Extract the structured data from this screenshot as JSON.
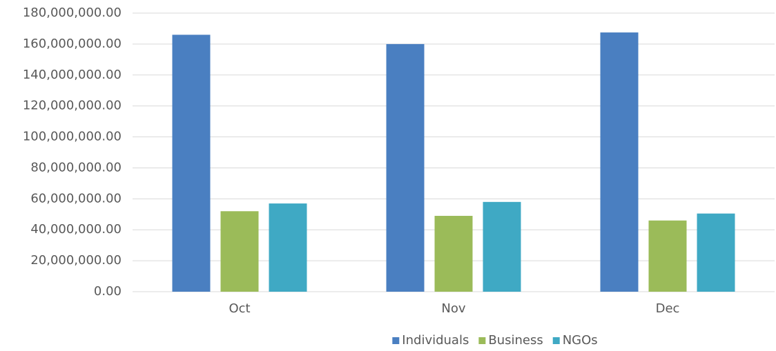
{
  "chart_data": {
    "type": "bar",
    "categories": [
      "Oct",
      "Nov",
      "Dec"
    ],
    "series": [
      {
        "name": "Individuals",
        "color": "#4a7fc1",
        "values": [
          166000000,
          160000000,
          167500000
        ]
      },
      {
        "name": "Business",
        "color": "#9bbb59",
        "values": [
          52000000,
          49000000,
          46000000
        ]
      },
      {
        "name": "NGOs",
        "color": "#3fa9c4",
        "values": [
          57000000,
          58000000,
          50500000
        ]
      }
    ],
    "ylim": [
      0,
      180000000
    ],
    "yticks": [
      {
        "value": 0,
        "label": "0.00"
      },
      {
        "value": 20000000,
        "label": "20,000,000.00"
      },
      {
        "value": 40000000,
        "label": "40,000,000.00"
      },
      {
        "value": 60000000,
        "label": "60,000,000.00"
      },
      {
        "value": 80000000,
        "label": "80,000,000.00"
      },
      {
        "value": 100000000,
        "label": "100,000,000.00"
      },
      {
        "value": 120000000,
        "label": "120,000,000.00"
      },
      {
        "value": 140000000,
        "label": "140,000,000.00"
      },
      {
        "value": 160000000,
        "label": "160,000,000.00"
      },
      {
        "value": 180000000,
        "label": "180,000,000.00"
      }
    ],
    "grid": true,
    "legend": "bottom"
  }
}
